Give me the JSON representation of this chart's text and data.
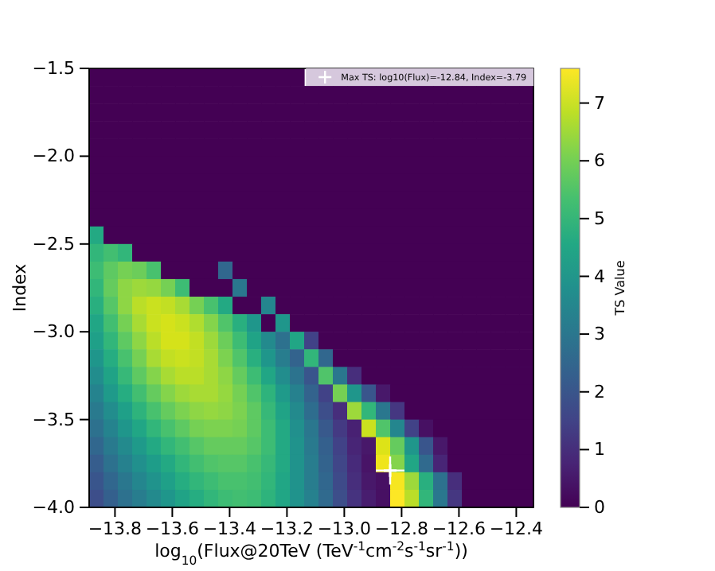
{
  "chart_data": {
    "type": "heatmap",
    "xlabel": "log$_{10}$(Flux@20TeV (TeV$^{-1}$cm$^{-2}$s$^{-1}$sr$^{-1}$))",
    "ylabel": "Index",
    "clabel": "TS Value",
    "xlim": [
      -13.89,
      -12.34
    ],
    "xticks": [
      {
        "value": -13.8,
        "label": "−13.8"
      },
      {
        "value": -13.6,
        "label": "−13.6"
      },
      {
        "value": -13.4,
        "label": "−13.4"
      },
      {
        "value": -13.2,
        "label": "−13.2"
      },
      {
        "value": -13.0,
        "label": "−13.0"
      },
      {
        "value": -12.8,
        "label": "−12.8"
      },
      {
        "value": -12.6,
        "label": "−12.6"
      },
      {
        "value": -12.4,
        "label": "−12.4"
      }
    ],
    "ylim": [
      -4.0,
      -1.5
    ],
    "yticks": [
      {
        "value": -4.0,
        "label": "−4.0"
      },
      {
        "value": -3.5,
        "label": "−3.5"
      },
      {
        "value": -3.0,
        "label": "−3.0"
      },
      {
        "value": -2.5,
        "label": "−2.5"
      },
      {
        "value": -2.0,
        "label": "−2.0"
      },
      {
        "value": -1.5,
        "label": "−1.5"
      }
    ],
    "clim": [
      0,
      7.6
    ],
    "cticks": [
      0,
      1,
      2,
      3,
      4,
      5,
      6,
      7
    ],
    "x": [
      -13.865,
      -13.815,
      -13.765,
      -13.715,
      -13.665,
      -13.615,
      -13.565,
      -13.515,
      -13.465,
      -13.415,
      -13.365,
      -13.315,
      -13.265,
      -13.215,
      -13.165,
      -13.115,
      -13.065,
      -13.015,
      -12.965,
      -12.915,
      -12.865,
      -12.815,
      -12.765,
      -12.715,
      -12.665,
      -12.615,
      -12.565,
      -12.515,
      -12.465,
      -12.415,
      -12.365
    ],
    "y": [
      -1.55,
      -1.65,
      -1.75,
      -1.85,
      -1.95,
      -2.05,
      -2.15,
      -2.25,
      -2.35,
      -2.45,
      -2.55,
      -2.65,
      -2.75,
      -2.85,
      -2.95,
      -3.05,
      -3.15,
      -3.25,
      -3.35,
      -3.45,
      -3.55,
      -3.65,
      -3.75,
      -3.85,
      -3.95
    ],
    "cells": [
      [
        0,
        0,
        0,
        0,
        0,
        0,
        0,
        0,
        0,
        0,
        0,
        0,
        0,
        0,
        0,
        null,
        null,
        null,
        null,
        null,
        null,
        null,
        null,
        null,
        null,
        null,
        null,
        null,
        null,
        null,
        null
      ],
      [
        0,
        0,
        0,
        0,
        0,
        0,
        0,
        0,
        0,
        0,
        0,
        0,
        0,
        0,
        0,
        0,
        0,
        0,
        0,
        0,
        0,
        0,
        0,
        0,
        0,
        0,
        0,
        0,
        0,
        0,
        0
      ],
      [
        0,
        0,
        0,
        0,
        0,
        0,
        0,
        0,
        0,
        0,
        0,
        0,
        0,
        0,
        0,
        0,
        0,
        0,
        0,
        0,
        0,
        0,
        0,
        0,
        0,
        0,
        0,
        0,
        0,
        0,
        0
      ],
      [
        0,
        0,
        0,
        0,
        0,
        0,
        0,
        0,
        0,
        0,
        0,
        0,
        0,
        0,
        0,
        0,
        0,
        0,
        0,
        0,
        0,
        0,
        0,
        0,
        0,
        0,
        0,
        0,
        0,
        0,
        0
      ],
      [
        0,
        0,
        0,
        0,
        0,
        0,
        0,
        0,
        0,
        0,
        0,
        0,
        0,
        0,
        0,
        0,
        0,
        0,
        0,
        0,
        0,
        0,
        0,
        0,
        0,
        0,
        0,
        0,
        0,
        0,
        0
      ],
      [
        0,
        0,
        0,
        0,
        0,
        0,
        0,
        0,
        0,
        0,
        0,
        0,
        0,
        0,
        0,
        0,
        0,
        0,
        0,
        0,
        0,
        0,
        0,
        0,
        0,
        0,
        0,
        0,
        0,
        0,
        0
      ],
      [
        0,
        0,
        0,
        0,
        0,
        0,
        0,
        0,
        0,
        0,
        0,
        0,
        0,
        0,
        0,
        0,
        0,
        0,
        0,
        0,
        0,
        0,
        0,
        0,
        0,
        0,
        0,
        0,
        0,
        0,
        0
      ],
      [
        0,
        0,
        0,
        0,
        0,
        0,
        0,
        0,
        0,
        0,
        0,
        0,
        0,
        0,
        0,
        0,
        0,
        0,
        0,
        0,
        0,
        0,
        0,
        0,
        0,
        0,
        0,
        0,
        0,
        0,
        0
      ],
      [
        0,
        0,
        0,
        0,
        0,
        0,
        0,
        0,
        0,
        0,
        0,
        0,
        0,
        0,
        0,
        0,
        0,
        0,
        0,
        0,
        0,
        0,
        0,
        0,
        0,
        0,
        0,
        0,
        0,
        0,
        0
      ],
      [
        4.6,
        0,
        0,
        0,
        0,
        0,
        0,
        0,
        0,
        0,
        0,
        0,
        0,
        0,
        0,
        0,
        0,
        0,
        0,
        0,
        0,
        0,
        0,
        0,
        0,
        0,
        0,
        0,
        0,
        0,
        0
      ],
      [
        5.0,
        5.3,
        5.0,
        0,
        0,
        0,
        0,
        0,
        0,
        0,
        0,
        0,
        0,
        0,
        0,
        0,
        0,
        0,
        0,
        0,
        0,
        0,
        0,
        0,
        0,
        0,
        0,
        0,
        0,
        0,
        0
      ],
      [
        5.2,
        5.7,
        6.0,
        5.9,
        5.4,
        0,
        0,
        0,
        0,
        2.5,
        0,
        0,
        0,
        0,
        0,
        0,
        0,
        0,
        0,
        0,
        0,
        0,
        0,
        0,
        0,
        0,
        0,
        0,
        0,
        0,
        0
      ],
      [
        5.0,
        5.8,
        6.3,
        6.5,
        6.4,
        6.0,
        5.2,
        0,
        0,
        0,
        3.0,
        0,
        0,
        0,
        0,
        0,
        0,
        0,
        0,
        0,
        0,
        0,
        0,
        0,
        0,
        0,
        0,
        0,
        0,
        0,
        0
      ],
      [
        4.8,
        5.6,
        6.3,
        6.8,
        7.0,
        6.9,
        6.6,
        6.0,
        5.4,
        4.6,
        0,
        0,
        3.5,
        0,
        0,
        0,
        0,
        0,
        0,
        0,
        0,
        0,
        0,
        0,
        0,
        0,
        0,
        0,
        0,
        0,
        0
      ],
      [
        4.5,
        5.3,
        6.0,
        6.6,
        7.0,
        7.1,
        7.0,
        6.7,
        6.2,
        5.5,
        4.8,
        4.0,
        0,
        4.0,
        0,
        0,
        0,
        0,
        0,
        0,
        0,
        0,
        0,
        0,
        0,
        0,
        0,
        0,
        0,
        0,
        0
      ],
      [
        4.3,
        5.0,
        5.7,
        6.3,
        6.8,
        7.1,
        7.1,
        6.9,
        6.5,
        5.9,
        5.2,
        4.4,
        3.6,
        2.8,
        4.5,
        1.5,
        0,
        0,
        0,
        0,
        0,
        0,
        0,
        0,
        0,
        0,
        0,
        0,
        0,
        0,
        0
      ],
      [
        4.0,
        4.7,
        5.4,
        6.0,
        6.6,
        6.9,
        7.0,
        6.9,
        6.6,
        6.1,
        5.5,
        4.8,
        4.0,
        3.2,
        2.4,
        5.0,
        2.5,
        0,
        0,
        0,
        0,
        0,
        0,
        0,
        0,
        0,
        0,
        0,
        0,
        0,
        0
      ],
      [
        3.7,
        4.4,
        5.1,
        5.7,
        6.2,
        6.6,
        6.8,
        6.8,
        6.6,
        6.3,
        5.8,
        5.2,
        4.5,
        3.7,
        2.9,
        2.0,
        5.5,
        3.0,
        1.0,
        0,
        0,
        0,
        0,
        0,
        0,
        0,
        0,
        0,
        0,
        0,
        0
      ],
      [
        3.4,
        4.1,
        4.7,
        5.3,
        5.8,
        6.2,
        6.5,
        6.6,
        6.6,
        6.4,
        6.0,
        5.5,
        4.9,
        4.1,
        3.3,
        2.4,
        1.5,
        6.0,
        4.0,
        2.0,
        0.5,
        0,
        0,
        0,
        0,
        0,
        0,
        0,
        0,
        0,
        0
      ],
      [
        3.1,
        3.7,
        4.3,
        4.9,
        5.4,
        5.8,
        6.1,
        6.3,
        6.4,
        6.3,
        6.1,
        5.7,
        5.1,
        4.4,
        3.6,
        2.7,
        1.8,
        1.0,
        6.5,
        5.0,
        3.0,
        1.2,
        0,
        0,
        0,
        0,
        0,
        0,
        0,
        0,
        0
      ],
      [
        2.8,
        3.4,
        4.0,
        4.5,
        5.0,
        5.4,
        5.7,
        6.0,
        6.1,
        6.1,
        6.0,
        5.7,
        5.2,
        4.6,
        3.8,
        3.0,
        2.1,
        1.3,
        0.7,
        7.0,
        5.5,
        3.5,
        1.5,
        0.3,
        0,
        0,
        0,
        0,
        0,
        0,
        0
      ],
      [
        2.5,
        3.1,
        3.6,
        4.1,
        4.6,
        5.0,
        5.3,
        5.6,
        5.8,
        5.8,
        5.8,
        5.6,
        5.2,
        4.6,
        3.9,
        3.1,
        2.3,
        1.5,
        0.8,
        0.5,
        7.2,
        5.8,
        4.0,
        2.0,
        0.5,
        0,
        0,
        0,
        0,
        0,
        0
      ],
      [
        2.2,
        2.8,
        3.3,
        3.8,
        4.2,
        4.6,
        5.0,
        5.3,
        5.5,
        5.6,
        5.6,
        5.4,
        5.1,
        4.6,
        3.9,
        3.2,
        2.4,
        1.6,
        0.9,
        0.4,
        7.4,
        6.2,
        4.5,
        2.6,
        0.8,
        0,
        0,
        0,
        0,
        0,
        0
      ],
      [
        2.0,
        2.5,
        3.0,
        3.5,
        3.9,
        4.3,
        4.7,
        5.0,
        5.2,
        5.4,
        5.4,
        5.3,
        5.0,
        4.5,
        3.9,
        3.2,
        2.5,
        1.7,
        1.0,
        0.5,
        0.3,
        7.5,
        6.5,
        4.8,
        2.8,
        1.0,
        0,
        0,
        0,
        0,
        0
      ],
      [
        1.8,
        2.3,
        2.8,
        3.2,
        3.6,
        4.0,
        4.4,
        4.7,
        5.0,
        5.2,
        5.3,
        5.2,
        4.9,
        4.5,
        3.9,
        3.3,
        2.6,
        1.8,
        1.1,
        0.6,
        0.3,
        7.6,
        6.8,
        5.0,
        3.0,
        1.2,
        0,
        0,
        0,
        0,
        0
      ]
    ],
    "series": [
      {
        "type": "scatter",
        "name": "Max TS: log10(Flux)=-12.84, Index=-3.79",
        "color": "#ffffff",
        "x": [
          -12.84
        ],
        "values": [
          -3.79
        ],
        "xerrors": [
          0.05
        ],
        "errors": [
          0.08
        ]
      }
    ],
    "marker": "cross",
    "legend": "top right"
  }
}
